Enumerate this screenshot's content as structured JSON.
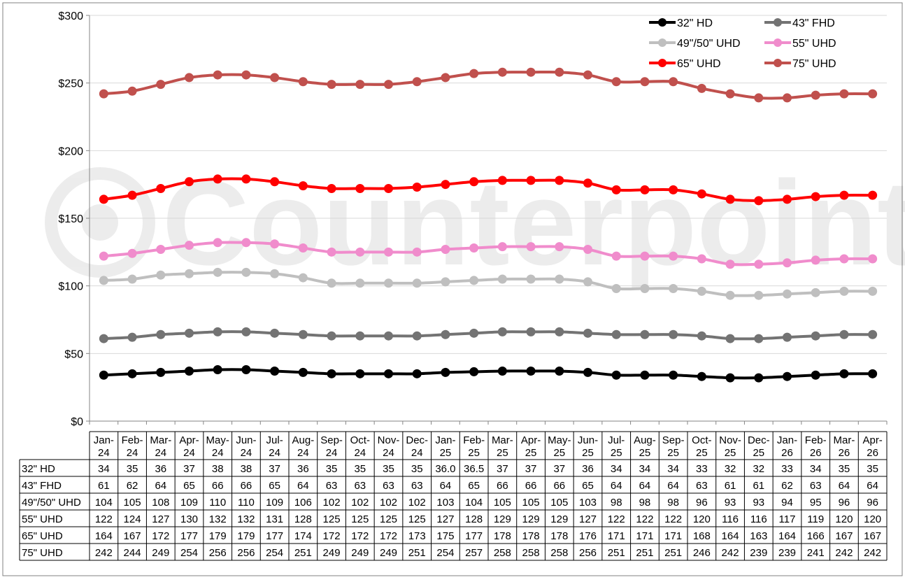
{
  "chart_data": {
    "type": "line",
    "categories": [
      [
        "Jan-",
        "24"
      ],
      [
        "Feb-",
        "24"
      ],
      [
        "Mar-",
        "24"
      ],
      [
        "Apr-",
        "24"
      ],
      [
        "May-",
        "24"
      ],
      [
        "Jun-",
        "24"
      ],
      [
        "Jul-",
        "24"
      ],
      [
        "Aug-",
        "24"
      ],
      [
        "Sep-",
        "24"
      ],
      [
        "Oct-",
        "24"
      ],
      [
        "Nov-",
        "24"
      ],
      [
        "Dec-",
        "24"
      ],
      [
        "Jan-",
        "25"
      ],
      [
        "Feb-",
        "25"
      ],
      [
        "Mar-",
        "25"
      ],
      [
        "Apr-",
        "25"
      ],
      [
        "May-",
        "25"
      ],
      [
        "Jun-",
        "25"
      ],
      [
        "Jul-",
        "25"
      ],
      [
        "Aug-",
        "25"
      ],
      [
        "Sep-",
        "25"
      ],
      [
        "Oct-",
        "25"
      ],
      [
        "Nov-",
        "25"
      ],
      [
        "Dec-",
        "25"
      ],
      [
        "Jan-",
        "26"
      ],
      [
        "Feb-",
        "26"
      ],
      [
        "Mar-",
        "26"
      ],
      [
        "Apr-",
        "26"
      ]
    ],
    "ylim": [
      0,
      300
    ],
    "yticks": [
      {
        "value": 0,
        "label": "$0"
      },
      {
        "value": 50,
        "label": "$50"
      },
      {
        "value": 100,
        "label": "$100"
      },
      {
        "value": 150,
        "label": "$150"
      },
      {
        "value": 200,
        "label": "$200"
      },
      {
        "value": 250,
        "label": "$250"
      },
      {
        "value": 300,
        "label": "$300"
      }
    ],
    "grid": true,
    "legend_position": "top-right",
    "watermark": "Counterpoint",
    "series": [
      {
        "name": "32\" HD",
        "color": "#000000",
        "values": [
          34,
          35,
          36,
          37,
          38,
          38,
          37,
          36,
          35,
          35,
          35,
          35,
          36.0,
          36.5,
          37,
          37,
          37,
          36,
          34,
          34,
          34,
          33,
          32,
          32,
          33,
          34,
          35,
          35
        ],
        "labels": [
          "34",
          "35",
          "36",
          "37",
          "38",
          "38",
          "37",
          "36",
          "35",
          "35",
          "35",
          "35",
          "36.0",
          "36.5",
          "37",
          "37",
          "37",
          "36",
          "34",
          "34",
          "34",
          "33",
          "32",
          "32",
          "33",
          "34",
          "35",
          "35"
        ]
      },
      {
        "name": "43\" FHD",
        "color": "#737373",
        "values": [
          61,
          62,
          64,
          65,
          66,
          66,
          65,
          64,
          63,
          63,
          63,
          63,
          64,
          65,
          66,
          66,
          66,
          65,
          64,
          64,
          64,
          63,
          61,
          61,
          62,
          63,
          64,
          64
        ],
        "labels": [
          "61",
          "62",
          "64",
          "65",
          "66",
          "66",
          "65",
          "64",
          "63",
          "63",
          "63",
          "63",
          "64",
          "65",
          "66",
          "66",
          "66",
          "65",
          "64",
          "64",
          "64",
          "63",
          "61",
          "61",
          "62",
          "63",
          "64",
          "64"
        ]
      },
      {
        "name": "49\"/50\" UHD",
        "color": "#bfbfbf",
        "values": [
          104,
          105,
          108,
          109,
          110,
          110,
          109,
          106,
          102,
          102,
          102,
          102,
          103,
          104,
          105,
          105,
          105,
          103,
          98,
          98,
          98,
          96,
          93,
          93,
          94,
          95,
          96,
          96
        ],
        "labels": [
          "104",
          "105",
          "108",
          "109",
          "110",
          "110",
          "109",
          "106",
          "102",
          "102",
          "102",
          "102",
          "103",
          "104",
          "105",
          "105",
          "105",
          "103",
          "98",
          "98",
          "98",
          "96",
          "93",
          "93",
          "94",
          "95",
          "96",
          "96"
        ]
      },
      {
        "name": "55\" UHD",
        "color": "#f08ccc",
        "values": [
          122,
          124,
          127,
          130,
          132,
          132,
          131,
          128,
          125,
          125,
          125,
          125,
          127,
          128,
          129,
          129,
          129,
          127,
          122,
          122,
          122,
          120,
          116,
          116,
          117,
          119,
          120,
          120
        ],
        "labels": [
          "122",
          "124",
          "127",
          "130",
          "132",
          "132",
          "131",
          "128",
          "125",
          "125",
          "125",
          "125",
          "127",
          "128",
          "129",
          "129",
          "129",
          "127",
          "122",
          "122",
          "122",
          "120",
          "116",
          "116",
          "117",
          "119",
          "120",
          "120"
        ]
      },
      {
        "name": "65\" UHD",
        "color": "#ff0000",
        "values": [
          164,
          167,
          172,
          177,
          179,
          179,
          177,
          174,
          172,
          172,
          172,
          173,
          175,
          177,
          178,
          178,
          178,
          176,
          171,
          171,
          171,
          168,
          164,
          163,
          164,
          166,
          167,
          167
        ],
        "labels": [
          "164",
          "167",
          "172",
          "177",
          "179",
          "179",
          "177",
          "174",
          "172",
          "172",
          "172",
          "173",
          "175",
          "177",
          "178",
          "178",
          "178",
          "176",
          "171",
          "171",
          "171",
          "168",
          "164",
          "163",
          "164",
          "166",
          "167",
          "167"
        ]
      },
      {
        "name": "75\" UHD",
        "color": "#c0504d",
        "values": [
          242,
          244,
          249,
          254,
          256,
          256,
          254,
          251,
          249,
          249,
          249,
          251,
          254,
          257,
          258,
          258,
          258,
          256,
          251,
          251,
          251,
          246,
          242,
          239,
          239,
          241,
          242,
          242
        ],
        "labels": [
          "242",
          "244",
          "249",
          "254",
          "256",
          "256",
          "254",
          "251",
          "249",
          "249",
          "249",
          "251",
          "254",
          "257",
          "258",
          "258",
          "258",
          "256",
          "251",
          "251",
          "251",
          "246",
          "242",
          "239",
          "239",
          "241",
          "242",
          "242"
        ]
      }
    ]
  }
}
